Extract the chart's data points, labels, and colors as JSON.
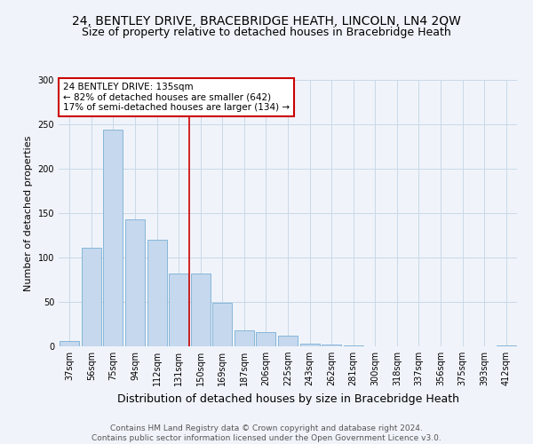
{
  "title1": "24, BENTLEY DRIVE, BRACEBRIDGE HEATH, LINCOLN, LN4 2QW",
  "title2": "Size of property relative to detached houses in Bracebridge Heath",
  "xlabel": "Distribution of detached houses by size in Bracebridge Heath",
  "ylabel": "Number of detached properties",
  "footnote": "Contains HM Land Registry data © Crown copyright and database right 2024.\nContains public sector information licensed under the Open Government Licence v3.0.",
  "bins": [
    "37sqm",
    "56sqm",
    "75sqm",
    "94sqm",
    "112sqm",
    "131sqm",
    "150sqm",
    "169sqm",
    "187sqm",
    "206sqm",
    "225sqm",
    "243sqm",
    "262sqm",
    "281sqm",
    "300sqm",
    "318sqm",
    "337sqm",
    "356sqm",
    "375sqm",
    "393sqm",
    "412sqm"
  ],
  "values": [
    6,
    111,
    244,
    143,
    120,
    82,
    82,
    49,
    18,
    16,
    12,
    3,
    2,
    1,
    0,
    0,
    0,
    0,
    0,
    0,
    1
  ],
  "bar_color": "#c5d8ee",
  "bar_edge_color": "#7aafd4",
  "vline_index": 5.5,
  "vline_color": "#cc0000",
  "annotation_text": "24 BENTLEY DRIVE: 135sqm\n← 82% of detached houses are smaller (642)\n17% of semi-detached houses are larger (134) →",
  "annotation_box_color": "#ffffff",
  "annotation_box_edge": "#cc0000",
  "ylim": [
    0,
    300
  ],
  "yticks": [
    0,
    50,
    100,
    150,
    200,
    250,
    300
  ],
  "background_color": "#f0f4fa",
  "grid_color": "#c8d8e8",
  "title1_fontsize": 10,
  "title2_fontsize": 9,
  "xlabel_fontsize": 9,
  "ylabel_fontsize": 8,
  "tick_fontsize": 7,
  "footnote_fontsize": 6.5
}
